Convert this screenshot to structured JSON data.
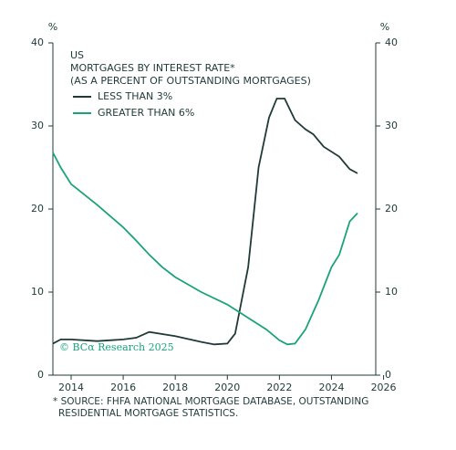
{
  "chart_data": {
    "type": "line",
    "title": "US",
    "subtitle": "MORTGAGES BY INTEREST RATE*",
    "subtitle2": "(AS A PERCENT OF OUTSTANDING MORTGAGES)",
    "y_unit": "%",
    "y2_unit": "%",
    "annotation": "© BCα Research 2025",
    "source": [
      "* SOURCE: FHFA NATIONAL MORTGAGE DATABASE, OUTSTANDING",
      "RESIDENTIAL MORTGAGE STATISTICS."
    ],
    "xlim": [
      2013.3,
      2025.7
    ],
    "xticks": [
      2014,
      2016,
      2018,
      2020,
      2022,
      2024,
      2026
    ],
    "ylim": [
      0,
      40
    ],
    "yticks": [
      0,
      10,
      20,
      30,
      40
    ],
    "y2lim": [
      0,
      40
    ],
    "y2ticks": [
      0,
      10,
      20,
      30,
      40
    ],
    "series": [
      {
        "name": "LESS THAN 3%",
        "color": "#1f3a37",
        "x": [
          2013.3,
          2013.6,
          2014,
          2015,
          2016,
          2016.5,
          2017,
          2018,
          2019,
          2019.5,
          2020,
          2020.3,
          2020.8,
          2021.2,
          2021.6,
          2021.9,
          2022.2,
          2022.6,
          2023,
          2023.3,
          2023.7,
          2024.3,
          2024.7,
          2025
        ],
        "values": [
          3.8,
          4.3,
          4.3,
          4.1,
          4.3,
          4.5,
          5.2,
          4.7,
          4.0,
          3.7,
          3.8,
          5,
          13,
          25,
          31,
          33.3,
          33.3,
          30.7,
          29.6,
          29.0,
          27.5,
          26.3,
          24.8,
          24.3
        ]
      },
      {
        "name": "GREATER THAN 6%",
        "color": "#1aa37a",
        "x": [
          2013.3,
          2013.6,
          2014,
          2015,
          2016,
          2016.5,
          2017,
          2017.5,
          2018,
          2019,
          2020,
          2020.5,
          2021,
          2021.5,
          2022,
          2022.3,
          2022.6,
          2023,
          2023.5,
          2024,
          2024.3,
          2024.7,
          2025
        ],
        "values": [
          26.8,
          25,
          23,
          20.5,
          17.8,
          16.2,
          14.5,
          13,
          11.8,
          10,
          8.5,
          7.5,
          6.5,
          5.5,
          4.2,
          3.7,
          3.8,
          5.5,
          9,
          13,
          14.5,
          18.5,
          19.5
        ]
      }
    ]
  }
}
